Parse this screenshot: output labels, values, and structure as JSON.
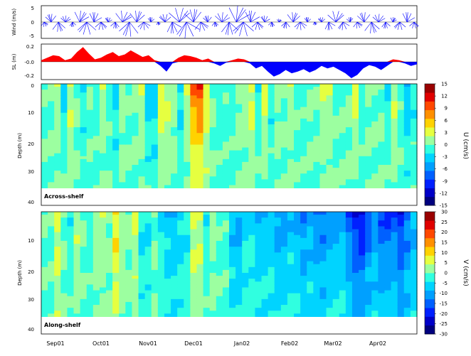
{
  "chart_data": [
    {
      "type": "line",
      "panel": "wind",
      "ylabel": "Wind (m/s)",
      "ylim": [
        -5,
        5
      ],
      "yticks": [
        "5",
        "0",
        "-5"
      ],
      "color": "#0000ff",
      "x_months": [
        "Sep01",
        "Oct01",
        "Nov01",
        "Dec01",
        "Jan02",
        "Feb02",
        "Mar02",
        "Apr02"
      ],
      "stick_speed": [
        1.5,
        2.5,
        3,
        2,
        1.5,
        3.5,
        4,
        3,
        2.5,
        1.5,
        2,
        3.5,
        4.5,
        3.5,
        2.5,
        1.5,
        1,
        2.5,
        3.5,
        4.5,
        5,
        4,
        3,
        2,
        1.5,
        3,
        4,
        5,
        4.5,
        3.5,
        2.5,
        2,
        1.5,
        1,
        2,
        3,
        2.5,
        1.5,
        1,
        1.5,
        2.5,
        3.5,
        2.5,
        1.5,
        2,
        3,
        3.5,
        2.5,
        2,
        1.5,
        2.5,
        3,
        2
      ]
    },
    {
      "type": "area",
      "panel": "sea-level",
      "ylabel": "SL (m)",
      "ylim": [
        -0.2,
        0.2
      ],
      "yticks": [
        "0.2",
        "-0.0",
        "-0.2"
      ],
      "positive_color": "#ff0000",
      "negative_color": "#0000ff",
      "values": [
        0.02,
        0.05,
        0.08,
        0.07,
        0.02,
        0.04,
        0.12,
        0.18,
        0.1,
        0.03,
        0.05,
        0.09,
        0.12,
        0.07,
        0.09,
        0.14,
        0.1,
        0.06,
        0.08,
        0.02,
        -0.05,
        -0.12,
        -0.02,
        0.05,
        0.08,
        0.07,
        0.05,
        0.02,
        0.04,
        -0.02,
        -0.05,
        -0.01,
        0.02,
        0.04,
        0.03,
        -0.02,
        -0.08,
        -0.05,
        -0.12,
        -0.18,
        -0.15,
        -0.1,
        -0.14,
        -0.12,
        -0.09,
        -0.13,
        -0.1,
        -0.05,
        -0.08,
        -0.06,
        -0.1,
        -0.14,
        -0.2,
        -0.16,
        -0.08,
        -0.04,
        -0.06,
        -0.1,
        -0.05,
        0.03,
        0.02,
        -0.02,
        -0.05,
        -0.03
      ]
    },
    {
      "type": "heatmap",
      "panel": "across-shelf",
      "label": "Across-shelf",
      "ylabel": "Depth (m)",
      "ylim": [
        0,
        42
      ],
      "yticks": [
        "0",
        "10",
        "20",
        "30",
        "40"
      ],
      "colorbar_label": "U (cm/s)",
      "colorbar_ticks": [
        "15",
        "12",
        "9",
        "6",
        "3",
        "0",
        "-3",
        "-6",
        "-9",
        "-12",
        "-15"
      ],
      "vmin": -15,
      "vmax": 15,
      "profile": [
        0,
        -2,
        4,
        -5,
        3,
        2,
        -4,
        1,
        -3,
        2,
        1,
        -6,
        2,
        0,
        -1,
        3,
        -2,
        -8,
        5,
        2,
        4,
        -4,
        -1,
        8,
        14,
        6,
        1,
        -2,
        0,
        -3,
        2,
        -1,
        7,
        -5,
        6,
        -4,
        2,
        -1,
        3,
        0,
        -2,
        1,
        -1,
        2,
        4,
        -1,
        1,
        -2,
        6,
        -3,
        1,
        -1,
        2,
        -4,
        3,
        1,
        -6,
        -2
      ],
      "depth_decay": 24,
      "bottom_depth": 36
    },
    {
      "type": "heatmap",
      "panel": "along-shelf",
      "label": "Along-shelf",
      "ylabel": "Depth (m)",
      "ylim": [
        0,
        42
      ],
      "yticks": [
        "10",
        "20",
        "30",
        "40"
      ],
      "colorbar_label": "V (cm/s)",
      "colorbar_ticks": [
        "30",
        "25",
        "20",
        "15",
        "10",
        "5",
        "0",
        "-5",
        "-10",
        "-15",
        "-20",
        "-25",
        "-30"
      ],
      "vmin": -30,
      "vmax": 30,
      "profile": [
        2,
        -5,
        8,
        3,
        -6,
        4,
        2,
        -4,
        1,
        6,
        -3,
        12,
        5,
        -2,
        8,
        -4,
        -8,
        2,
        -3,
        -6,
        -10,
        -5,
        -8,
        4,
        10,
        -6,
        4,
        -2,
        1,
        -8,
        -12,
        -6,
        -4,
        -8,
        -9,
        -6,
        -10,
        -12,
        -8,
        -9,
        -14,
        -10,
        -12,
        -16,
        -11,
        -13,
        -8,
        -14,
        -20,
        -24,
        -18,
        -12,
        -16,
        -20,
        -14,
        -22,
        -18,
        -10
      ],
      "depth_decay": 40,
      "bottom_depth": 36
    }
  ]
}
